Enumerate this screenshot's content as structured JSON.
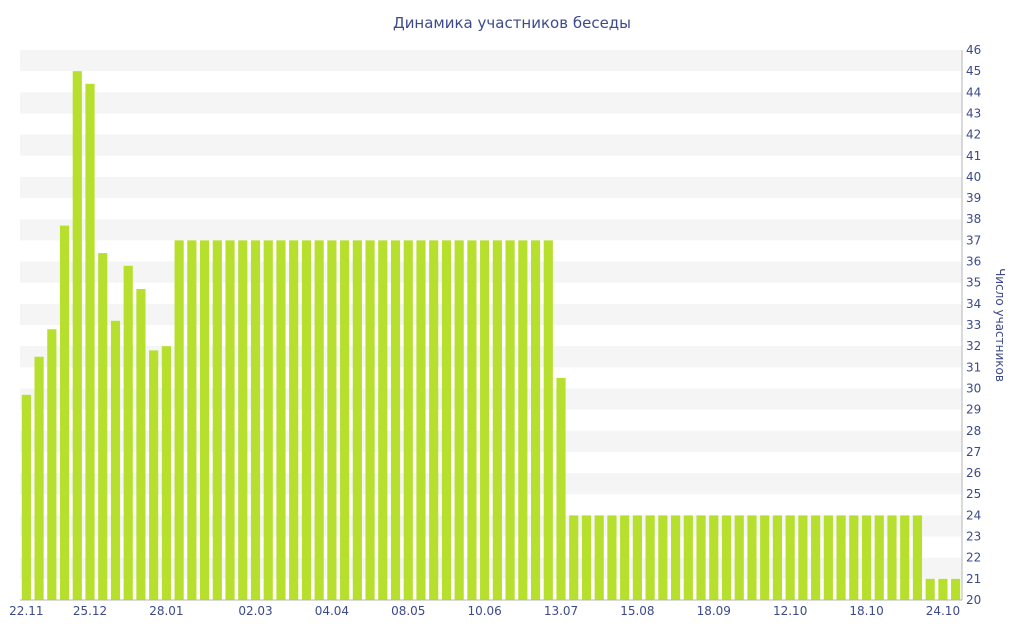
{
  "chart_data": {
    "type": "bar",
    "title": "Динамика участников беседы",
    "ylabel": "Число участников",
    "xlabel": "",
    "ylim": [
      20,
      46
    ],
    "y_ticks": [
      20,
      21,
      22,
      23,
      24,
      25,
      26,
      27,
      28,
      29,
      30,
      31,
      32,
      33,
      34,
      35,
      36,
      37,
      38,
      39,
      40,
      41,
      42,
      43,
      44,
      45,
      46
    ],
    "x_tick_labels": [
      {
        "label": "22.11",
        "index": 0
      },
      {
        "label": "25.12",
        "index": 5
      },
      {
        "label": "28.01",
        "index": 11
      },
      {
        "label": "02.03",
        "index": 18
      },
      {
        "label": "04.04",
        "index": 24
      },
      {
        "label": "08.05",
        "index": 30
      },
      {
        "label": "10.06",
        "index": 36
      },
      {
        "label": "13.07",
        "index": 42
      },
      {
        "label": "15.08",
        "index": 48
      },
      {
        "label": "18.09",
        "index": 54
      },
      {
        "label": "12.10",
        "index": 60
      },
      {
        "label": "18.10",
        "index": 66
      },
      {
        "label": "24.10",
        "index": 72
      }
    ],
    "values": [
      29.7,
      31.5,
      32.8,
      37.7,
      45.0,
      44.4,
      36.4,
      33.2,
      35.8,
      34.7,
      31.8,
      32.0,
      37,
      37,
      37,
      37,
      37,
      37,
      37,
      37,
      37,
      37,
      37,
      37,
      37,
      37,
      37,
      37,
      37,
      37,
      37,
      37,
      37,
      37,
      37,
      37,
      37,
      37,
      37,
      37,
      37,
      37,
      30.5,
      24,
      24,
      24,
      24,
      24,
      24,
      24,
      24,
      24,
      24,
      24,
      24,
      24,
      24,
      24,
      24,
      24,
      24,
      24,
      24,
      24,
      24,
      24,
      24,
      24,
      24,
      24,
      24,
      21,
      21,
      21
    ],
    "colors": {
      "bar": "#b7df2e",
      "text": "#3c4a8c",
      "band": "#f5f5f5"
    },
    "grid": "alternating horizontal bands",
    "y_axis_position": "right"
  }
}
